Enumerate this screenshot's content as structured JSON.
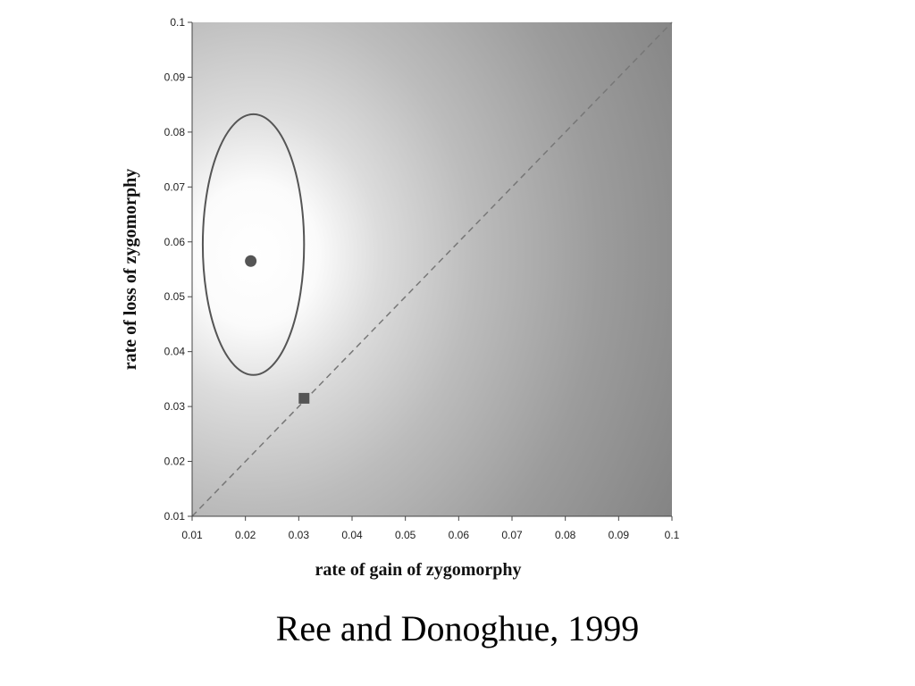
{
  "chart_data": {
    "type": "heatmap",
    "title": "",
    "xlabel": "rate of gain of zygomorphy",
    "ylabel": "rate of loss of zygomorphy",
    "xlim": [
      0.01,
      0.1
    ],
    "ylim": [
      0.01,
      0.1
    ],
    "x_ticks": [
      "0.01",
      "0.02",
      "0.03",
      "0.04",
      "0.05",
      "0.06",
      "0.07",
      "0.08",
      "0.09",
      "0.1"
    ],
    "y_ticks": [
      "0.01",
      "0.02",
      "0.03",
      "0.04",
      "0.05",
      "0.06",
      "0.07",
      "0.08",
      "0.09",
      "0.1"
    ],
    "surface": {
      "peak": [
        0.021,
        0.057
      ],
      "shading": "lighter = higher likelihood; darkest toward high gain rates"
    },
    "contour": {
      "center": [
        0.0215,
        0.0595
      ],
      "x_range": [
        0.013,
        0.032
      ],
      "y_range": [
        0.036,
        0.0835
      ]
    },
    "points": [
      {
        "marker": "circle",
        "x": 0.021,
        "y": 0.0565
      },
      {
        "marker": "square",
        "x": 0.031,
        "y": 0.0315
      }
    ],
    "reference_line": {
      "style": "dashed",
      "from": [
        0.01,
        0.01
      ],
      "to": [
        0.1,
        0.1
      ]
    },
    "colors": {
      "contour": "#555555",
      "markers": "#555555",
      "dashed_line": "#777777"
    }
  },
  "caption": "Ree and Donoghue, 1999"
}
